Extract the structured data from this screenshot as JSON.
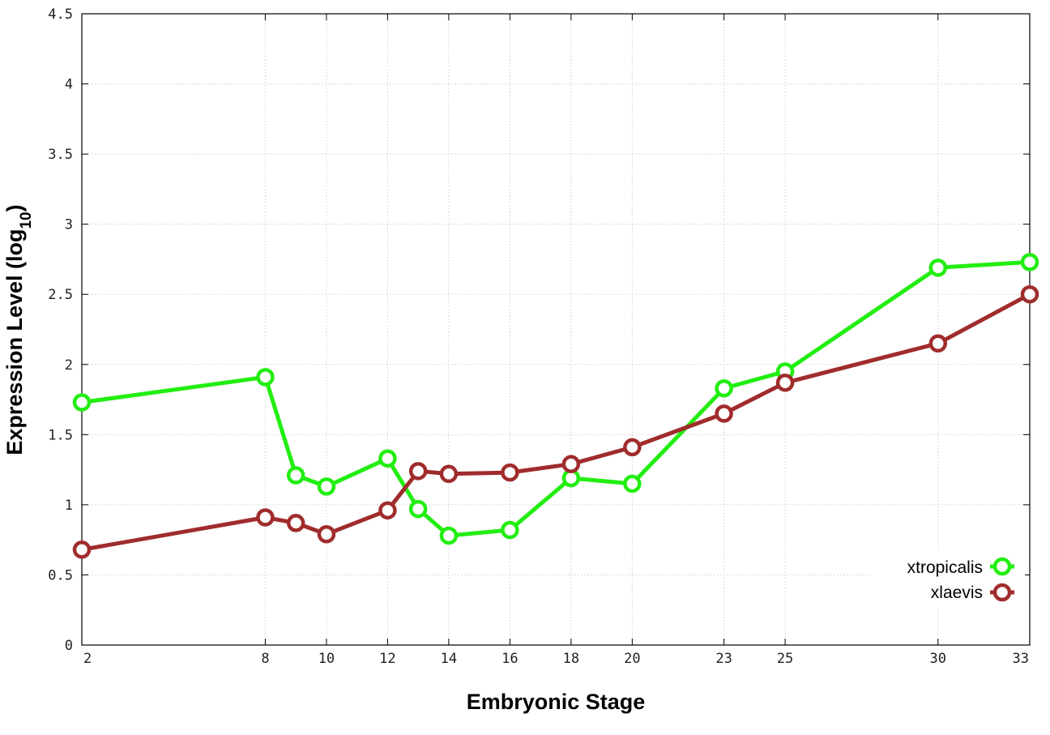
{
  "chart_data": {
    "type": "line",
    "xlabel": "Embryonic Stage",
    "ylabel_main": "Expression Level (log",
    "ylabel_sub": "10",
    "ylabel_close": ")",
    "xlim": [
      2,
      33
    ],
    "ylim": [
      0,
      4.5
    ],
    "x_ticks": [
      2,
      8,
      10,
      12,
      14,
      16,
      18,
      20,
      23,
      25,
      30,
      33
    ],
    "y_ticks": [
      0,
      0.5,
      1,
      1.5,
      2,
      2.5,
      3,
      3.5,
      4,
      4.5
    ],
    "y_tick_labels": [
      "0",
      "0.5",
      "1",
      "1.5",
      "2",
      "2.5",
      "3",
      "3.5",
      "4",
      "4.5"
    ],
    "grid": true,
    "legend_position": "bottom-right",
    "x": [
      2,
      8,
      9,
      10,
      12,
      13,
      14,
      16,
      18,
      20,
      23,
      25,
      30,
      33
    ],
    "series": [
      {
        "name": "xtropicalis",
        "color": "#22ee11",
        "values": [
          1.73,
          1.91,
          1.21,
          1.13,
          1.33,
          0.97,
          0.78,
          0.82,
          1.19,
          1.15,
          1.83,
          1.95,
          2.69,
          2.73
        ]
      },
      {
        "name": "xlaevis",
        "color": "#a02c2c",
        "values": [
          0.68,
          0.91,
          0.87,
          0.79,
          0.96,
          1.24,
          1.22,
          1.23,
          1.29,
          1.41,
          1.65,
          1.87,
          2.15,
          2.5
        ]
      }
    ]
  }
}
